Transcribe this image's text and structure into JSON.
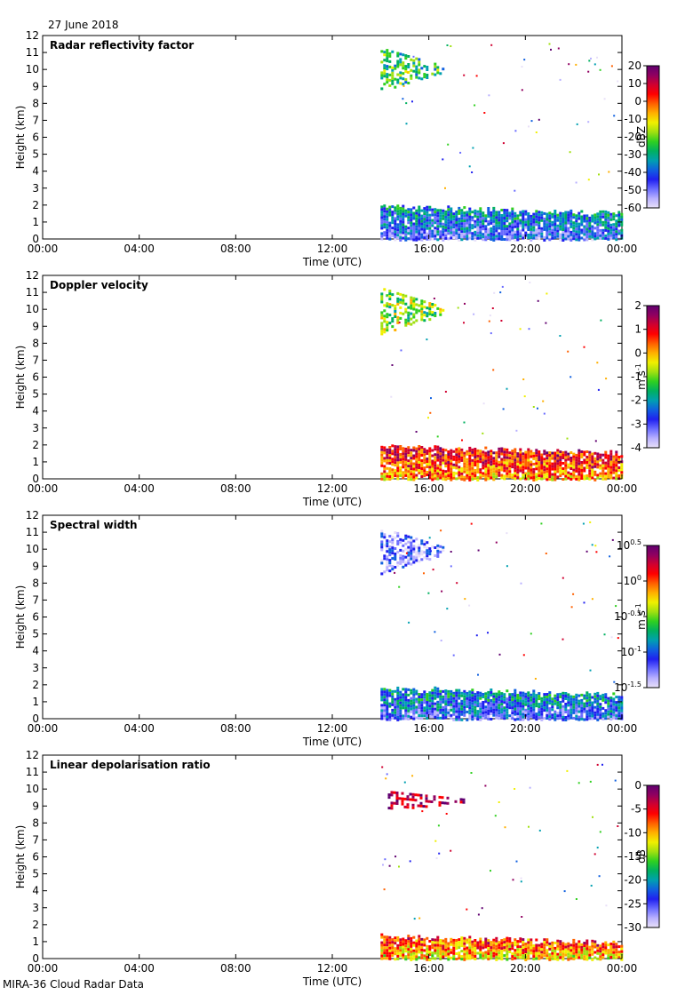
{
  "date": "27 June 2018",
  "footer": "MIRA-36 Cloud Radar Data",
  "chart_data": [
    {
      "type": "heatmap",
      "title": "Radar reflectivity factor",
      "xlabel": "Time (UTC)",
      "ylabel": "Height (km)",
      "xticks": [
        "00:00",
        "04:00",
        "08:00",
        "12:00",
        "16:00",
        "20:00",
        "00:00"
      ],
      "xlim_hours": [
        0,
        24
      ],
      "yticks": [
        0,
        1,
        2,
        3,
        4,
        5,
        6,
        7,
        8,
        9,
        10,
        11,
        12
      ],
      "ylim": [
        0,
        12
      ],
      "colorbar": {
        "label": "dBZ",
        "ticks": [
          "20",
          "10",
          "0",
          "-10",
          "-20",
          "-30",
          "-40",
          "-50",
          "-60"
        ],
        "range": [
          -60,
          20
        ]
      },
      "data_start_hour": 14.0,
      "features": [
        {
          "name": "upper cloud",
          "time_start": 14.0,
          "time_end": 16.6,
          "height_bottom": 8.8,
          "height_top": 11.3,
          "value_approx": -25
        },
        {
          "name": "low cloud layer",
          "time_start": 14.0,
          "time_end": 24.0,
          "height_bottom": 0.0,
          "height_top": 2.1,
          "value_approx": -45
        }
      ]
    },
    {
      "type": "heatmap",
      "title": "Doppler velocity",
      "xlabel": "Time (UTC)",
      "ylabel": "Height (km)",
      "xticks": [
        "00:00",
        "04:00",
        "08:00",
        "12:00",
        "16:00",
        "20:00",
        "00:00"
      ],
      "xlim_hours": [
        0,
        24
      ],
      "yticks": [
        0,
        1,
        2,
        3,
        4,
        5,
        6,
        7,
        8,
        9,
        10,
        11,
        12
      ],
      "ylim": [
        0,
        12
      ],
      "colorbar": {
        "label": "m s",
        "label_sup": "-1",
        "ticks": [
          "2",
          "1",
          "0",
          "-1",
          "-2",
          "-3",
          "-4"
        ],
        "range": [
          -4,
          2
        ]
      },
      "data_start_hour": 14.0,
      "features": [
        {
          "name": "upper cloud",
          "time_start": 14.0,
          "time_end": 16.6,
          "height_bottom": 8.6,
          "height_top": 11.3,
          "value_approx": -1.0
        },
        {
          "name": "low cloud layer",
          "time_start": 14.0,
          "time_end": 24.0,
          "height_bottom": 0.0,
          "height_top": 2.1,
          "value_approx": 0.0
        }
      ]
    },
    {
      "type": "heatmap",
      "title": "Spectral width",
      "xlabel": "Time (UTC)",
      "ylabel": "Height (km)",
      "xticks": [
        "00:00",
        "04:00",
        "08:00",
        "12:00",
        "16:00",
        "20:00",
        "00:00"
      ],
      "xlim_hours": [
        0,
        24
      ],
      "yticks": [
        0,
        1,
        2,
        3,
        4,
        5,
        6,
        7,
        8,
        9,
        10,
        11,
        12
      ],
      "ylim": [
        0,
        12
      ],
      "colorbar": {
        "label": "m s",
        "label_sup": "-1",
        "log_scale": true,
        "ticks": [
          {
            "base": "10",
            "exp": "0.5"
          },
          {
            "base": "10",
            "exp": "0"
          },
          {
            "base": "10",
            "exp": "-0.5"
          },
          {
            "base": "10",
            "exp": "-1"
          },
          {
            "base": "10",
            "exp": "-1.5"
          }
        ],
        "range_log10": [
          -1.5,
          0.5
        ]
      },
      "data_start_hour": 14.0,
      "features": [
        {
          "name": "upper cloud",
          "time_start": 14.0,
          "time_end": 16.6,
          "height_bottom": 8.6,
          "height_top": 11.3,
          "value_log10_approx": -1.2
        },
        {
          "name": "low cloud layer",
          "time_start": 14.0,
          "time_end": 24.0,
          "height_bottom": 0.0,
          "height_top": 2.0,
          "value_log10_approx": -1.1
        }
      ]
    },
    {
      "type": "heatmap",
      "title": "Linear depolarisation ratio",
      "xlabel": "Time (UTC)",
      "ylabel": "Height (km)",
      "xticks": [
        "00:00",
        "04:00",
        "08:00",
        "12:00",
        "16:00",
        "20:00",
        "00:00"
      ],
      "xlim_hours": [
        0,
        24
      ],
      "yticks": [
        0,
        1,
        2,
        3,
        4,
        5,
        6,
        7,
        8,
        9,
        10,
        11,
        12
      ],
      "ylim": [
        0,
        12
      ],
      "colorbar": {
        "label": "dB",
        "ticks": [
          "0",
          "-5",
          "-10",
          "-15",
          "-20",
          "-25",
          "-30"
        ],
        "range": [
          -30,
          0
        ]
      },
      "data_start_hour": 14.0,
      "features": [
        {
          "name": "upper cloud speckle",
          "time_start": 14.3,
          "time_end": 17.5,
          "height_bottom": 8.8,
          "height_top": 9.9,
          "value_approx": -3
        },
        {
          "name": "low cloud layer",
          "time_start": 14.0,
          "time_end": 24.0,
          "height_bottom": 0.0,
          "height_top": 1.5,
          "value_approx": -12
        }
      ]
    }
  ]
}
